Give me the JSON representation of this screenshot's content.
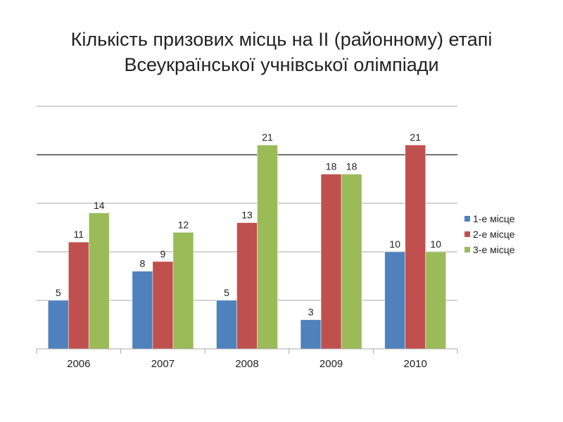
{
  "chart_data": {
    "type": "bar",
    "title_line1": "Кількість призових місць на ІІ (районному) етапі",
    "title_line2": "Всеукраїнської учнівської олімпіади",
    "categories": [
      "2006",
      "2007",
      "2008",
      "2009",
      "2010"
    ],
    "series": [
      {
        "name": "1-е місце",
        "values": [
          5,
          8,
          5,
          3,
          10
        ],
        "color": "#4f81bd"
      },
      {
        "name": "2-е місце",
        "values": [
          11,
          9,
          13,
          18,
          21
        ],
        "color": "#c0504d"
      },
      {
        "name": "3-е місце",
        "values": [
          14,
          12,
          21,
          18,
          10
        ],
        "color": "#9bbb59"
      }
    ],
    "ylim": [
      0,
      25
    ],
    "grid": true,
    "legend": "right"
  }
}
